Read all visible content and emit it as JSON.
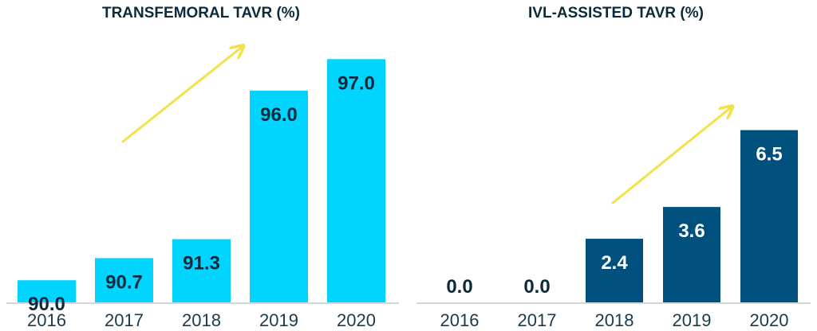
{
  "chart_data": [
    {
      "type": "bar",
      "title": "TRANSFEMORAL TAVR (%)",
      "categories": [
        "2016",
        "2017",
        "2018",
        "2019",
        "2020"
      ],
      "values": [
        90.0,
        90.7,
        91.3,
        96.0,
        97.0
      ],
      "value_labels": [
        "90.0",
        "90.7",
        "91.3",
        "96.0",
        "97.0"
      ],
      "bar_color": "#00d4ff",
      "label_color": "#0b2b3c",
      "trend_arrow": true,
      "arrow_color": "#f2e24a"
    },
    {
      "type": "bar",
      "title": "IVL-ASSISTED TAVR (%)",
      "categories": [
        "2016",
        "2017",
        "2018",
        "2019",
        "2020"
      ],
      "values": [
        0.0,
        0.0,
        2.4,
        3.6,
        6.5
      ],
      "value_labels": [
        "0.0",
        "0.0",
        "2.4",
        "3.6",
        "6.5"
      ],
      "bar_color": "#00507d",
      "label_color": "#ffffff",
      "zero_label_color": "#0b2b3c",
      "trend_arrow": true,
      "arrow_color": "#f2e24a"
    }
  ]
}
